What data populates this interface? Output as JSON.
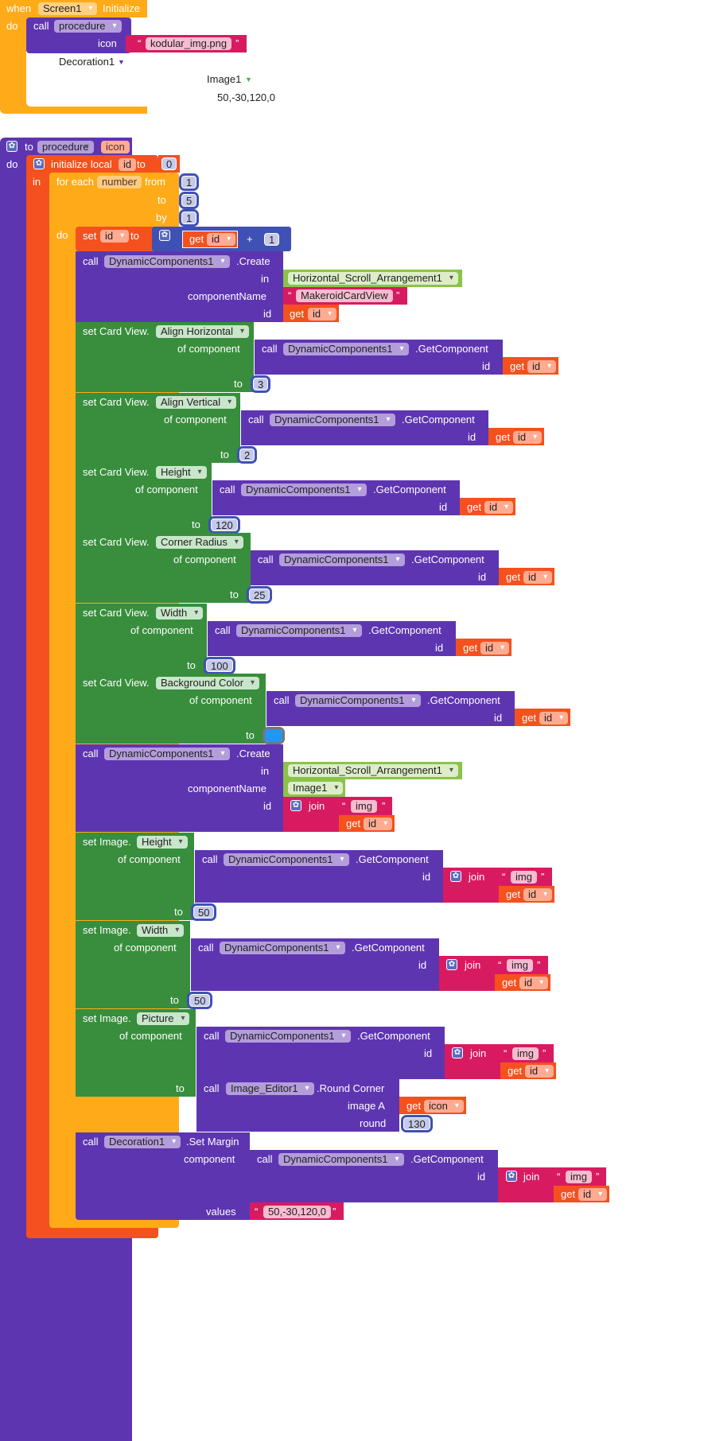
{
  "event": {
    "when": "when",
    "component": "Screen1",
    "event_name": "Initialize",
    "do": "do"
  },
  "screen_call": {
    "call": "call",
    "procedure": "procedure",
    "icon_label": "icon",
    "icon_value": "kodular_img.png",
    "decoration": "Decoration1",
    "image": "Image1",
    "margin": "50,-30,120,0"
  },
  "proc": {
    "to": "to",
    "name": "procedure",
    "param": "icon",
    "do": "do"
  },
  "local": {
    "init": "initialize local",
    "var": "id",
    "to": "to",
    "value": "0",
    "in": "in"
  },
  "loop": {
    "for_each": "for each",
    "var": "number",
    "from": "from",
    "from_val": "1",
    "to": "to",
    "to_val": "5",
    "by": "by",
    "by_val": "1",
    "do": "do"
  },
  "set_id": {
    "set": "set",
    "var": "id",
    "to": "to",
    "get": "get",
    "get_var": "id",
    "plus": "+",
    "add": "1"
  },
  "create1": {
    "call": "call",
    "component": "DynamicComponents1",
    "method": ".Create",
    "in": "in",
    "arrangement": "Horizontal_Scroll_Arrangement1",
    "componentName": "componentName",
    "type": "MakeroidCardView",
    "id": "id",
    "get": "get",
    "get_var": "id"
  },
  "card_props": [
    {
      "prefix": "set Card View.",
      "prop": "Align Horizontal",
      "value": "3"
    },
    {
      "prefix": "set Card View.",
      "prop": "Align Vertical",
      "value": "2"
    },
    {
      "prefix": "set Card View.",
      "prop": "Height",
      "value": "120"
    },
    {
      "prefix": "set Card View.",
      "prop": "Corner Radius",
      "value": "25"
    },
    {
      "prefix": "set Card View.",
      "prop": "Width",
      "value": "100"
    },
    {
      "prefix": "set Card View.",
      "prop": "Background Color",
      "value": ""
    }
  ],
  "labels": {
    "of_component": "of component",
    "to": "to",
    "call": "call",
    "dc": "DynamicComponents1",
    "get_component": ".GetComponent",
    "id": "id",
    "get": "get",
    "join": "join",
    "img": "img",
    "values": "values",
    "component": "component"
  },
  "bg_color": "#2196f3",
  "create2": {
    "call": "call",
    "component": "DynamicComponents1",
    "method": ".Create",
    "in": "in",
    "arrangement": "Horizontal_Scroll_Arrangement1",
    "componentName": "componentName",
    "type": "Image1",
    "id": "id"
  },
  "image_props": [
    {
      "prefix": "set Image.",
      "prop": "Height",
      "value": "50"
    },
    {
      "prefix": "set Image.",
      "prop": "Width",
      "value": "50"
    },
    {
      "prefix": "set Image.",
      "prop": "Picture"
    }
  ],
  "round": {
    "call": "call",
    "component": "Image_Editor1",
    "method": ".Round Corner",
    "image_a": "image A",
    "get": "get",
    "icon": "icon",
    "round": "round",
    "round_val": "130"
  },
  "margin": {
    "call": "call",
    "component": "Decoration1",
    "method": ".Set Margin",
    "values_val": "50,-30,120,0"
  }
}
